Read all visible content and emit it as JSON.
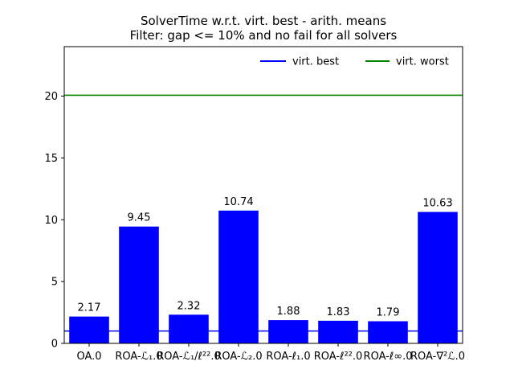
{
  "chart_data": {
    "type": "bar",
    "title": "SolverTime w.r.t. virt. best - arith. means",
    "subtitle": "Filter: gap <= 10% and no fail for all solvers",
    "xlabel": "",
    "ylabel": "",
    "categories": [
      "OA.0",
      "ROA-ℒ₁.0",
      "ROA-ℒ₁/ℓ²².0",
      "ROA-ℒ₂.0",
      "ROA-ℓ₁.0",
      "ROA-ℓ²².0",
      "ROA-ℓ∞.0",
      "ROA-∇²ℒ.0"
    ],
    "values": [
      2.17,
      9.45,
      2.32,
      10.74,
      1.88,
      1.83,
      1.79,
      10.63
    ],
    "data_labels": [
      "2.17",
      "9.45",
      "2.32",
      "10.74",
      "1.88",
      "1.83",
      "1.79",
      "10.63"
    ],
    "ylim": [
      0,
      24
    ],
    "yticks": [
      0,
      5,
      10,
      15,
      20
    ],
    "reference_lines": [
      {
        "name": "virt. best",
        "value": 1.0,
        "color": "#0000ff"
      },
      {
        "name": "virt. worst",
        "value": 20.07,
        "color": "#008000"
      }
    ],
    "bar_color": "#0000ff",
    "legend_position": "top-right",
    "grid": false
  }
}
